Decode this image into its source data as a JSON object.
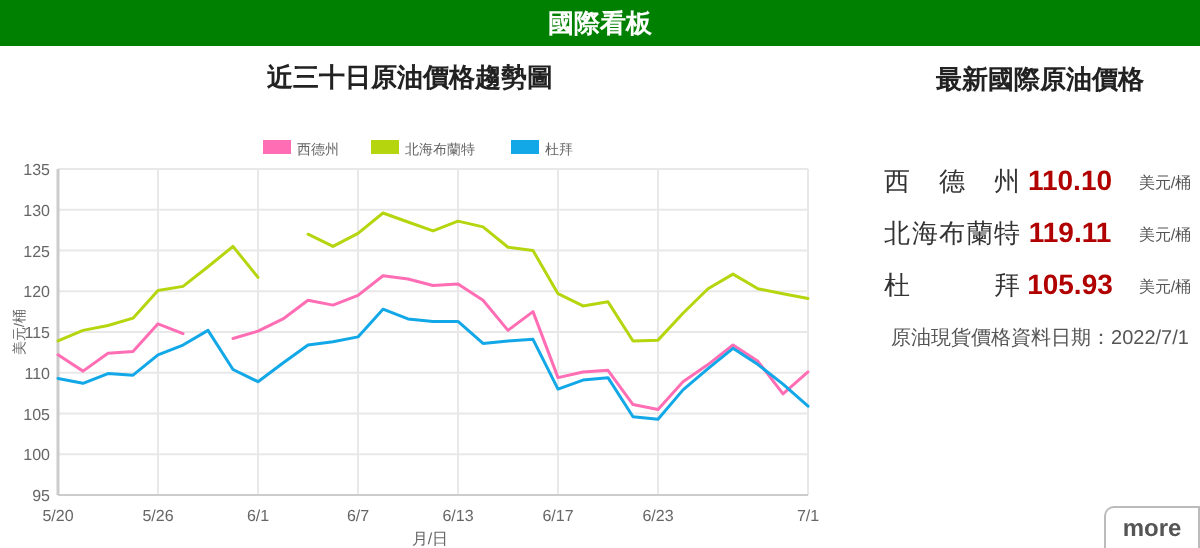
{
  "chart_data": [
    {
      "type": "other",
      "title": "國際看板",
      "annotations": [
        "more"
      ]
    },
    {
      "type": "line",
      "title": "近三十日原油價格趨勢圖",
      "xlabel": "月/日",
      "ylabel": "美元/桶",
      "categories": [
        "5/20",
        null,
        null,
        null,
        "5/26",
        null,
        null,
        null,
        "6/1",
        null,
        null,
        null,
        "6/7",
        null,
        null,
        null,
        "6/13",
        null,
        null,
        null,
        "6/17",
        null,
        null,
        null,
        "6/23",
        null,
        null,
        null,
        null,
        null,
        "7/1"
      ],
      "series": [
        {
          "name": "西德州",
          "color": "#ff6eb4",
          "values": [
            112.2,
            110.2,
            112.4,
            112.6,
            116.0,
            114.8,
            null,
            114.2,
            115.1,
            116.6,
            118.9,
            118.3,
            119.5,
            121.9,
            121.5,
            120.7,
            120.9,
            118.9,
            115.2,
            117.5,
            109.4,
            110.1,
            110.3,
            106.1,
            105.5,
            108.9,
            111.0,
            113.4,
            111.4,
            107.4,
            110.1
          ]
        },
        {
          "name": "北海布蘭特",
          "color": "#b5d60f",
          "values": [
            113.9,
            115.2,
            115.8,
            116.7,
            120.1,
            120.6,
            123.0,
            125.5,
            121.7,
            null,
            127.0,
            125.5,
            127.1,
            129.6,
            128.5,
            127.4,
            128.6,
            127.9,
            125.4,
            125.0,
            119.7,
            118.2,
            118.7,
            113.9,
            114.0,
            117.3,
            120.3,
            122.1,
            120.3,
            119.7,
            119.1
          ]
        },
        {
          "name": "杜拜",
          "color": "#12a8e8",
          "values": [
            109.3,
            108.7,
            109.9,
            109.7,
            112.2,
            113.4,
            115.2,
            110.4,
            108.9,
            111.2,
            113.4,
            113.8,
            114.4,
            117.8,
            116.6,
            116.3,
            116.3,
            113.6,
            113.9,
            114.1,
            108.0,
            109.1,
            109.4,
            104.6,
            104.3,
            107.9,
            110.5,
            113.0,
            111.0,
            108.6,
            105.9
          ]
        }
      ],
      "ylim": [
        95,
        135
      ],
      "yticks": [
        95,
        100,
        105,
        110,
        115,
        120,
        125,
        130,
        135
      ],
      "grid": true,
      "legend": "top",
      "marker": "none",
      "line_style": "solid"
    },
    {
      "type": "other",
      "title": "最新國際原油價格",
      "categories": [
        "西德州",
        "北海布蘭特",
        "杜拜"
      ],
      "value_labels": [
        "110.10",
        "119.11",
        "105.93"
      ],
      "colors": [
        "#b00000",
        "#b00000",
        "#b00000"
      ],
      "annotations": [
        "美元/桶",
        "美元/桶",
        "美元/桶",
        "原油現貨價格資料日期：2022/7/1"
      ]
    }
  ]
}
